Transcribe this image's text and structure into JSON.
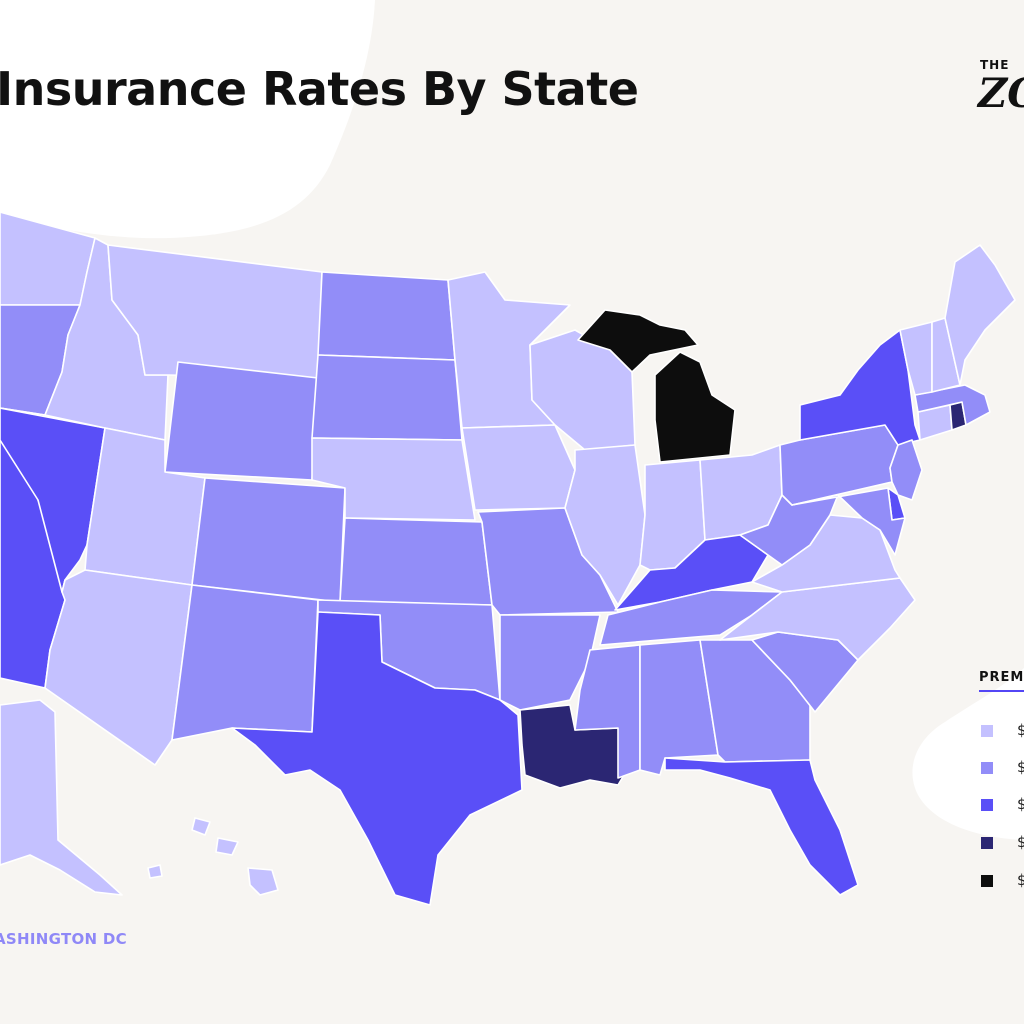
{
  "title": "Insurance Rates By State",
  "brand": {
    "line1": "THE",
    "line2": "ZO"
  },
  "legend": {
    "title": "PREM",
    "items": [
      {
        "label": "$",
        "color": "#c4c1ff"
      },
      {
        "label": "$",
        "color": "#928df8"
      },
      {
        "label": "$",
        "color": "#5a4ff7"
      },
      {
        "label": "$",
        "color": "#2b2673"
      },
      {
        "label": "$",
        "color": "#0d0d0d"
      }
    ]
  },
  "dc_label": "ASHINGTON DC",
  "colors": {
    "background": "#f7f5f2",
    "highlight_blob": "#ffffff",
    "tier_1": "#c4c1ff",
    "tier_2": "#928df8",
    "tier_3": "#5a4ff7",
    "tier_4": "#2b2673",
    "tier_5": "#0d0d0d",
    "accent": "#5346f5"
  },
  "states": [
    {
      "name": "Washington",
      "tier": 1
    },
    {
      "name": "Oregon",
      "tier": 2
    },
    {
      "name": "California",
      "tier": 3
    },
    {
      "name": "Nevada",
      "tier": 3
    },
    {
      "name": "Idaho",
      "tier": 1
    },
    {
      "name": "Montana",
      "tier": 1
    },
    {
      "name": "Wyoming",
      "tier": 2
    },
    {
      "name": "Utah",
      "tier": 1
    },
    {
      "name": "Arizona",
      "tier": 1
    },
    {
      "name": "Colorado",
      "tier": 2
    },
    {
      "name": "New Mexico",
      "tier": 2
    },
    {
      "name": "North Dakota",
      "tier": 2
    },
    {
      "name": "South Dakota",
      "tier": 2
    },
    {
      "name": "Nebraska",
      "tier": 1
    },
    {
      "name": "Kansas",
      "tier": 2
    },
    {
      "name": "Oklahoma",
      "tier": 2
    },
    {
      "name": "Texas",
      "tier": 3
    },
    {
      "name": "Minnesota",
      "tier": 1
    },
    {
      "name": "Iowa",
      "tier": 1
    },
    {
      "name": "Missouri",
      "tier": 2
    },
    {
      "name": "Arkansas",
      "tier": 2
    },
    {
      "name": "Louisiana",
      "tier": 4
    },
    {
      "name": "Wisconsin",
      "tier": 1
    },
    {
      "name": "Illinois",
      "tier": 1
    },
    {
      "name": "Michigan",
      "tier": 5
    },
    {
      "name": "Indiana",
      "tier": 1
    },
    {
      "name": "Ohio",
      "tier": 1
    },
    {
      "name": "Kentucky",
      "tier": 3
    },
    {
      "name": "Tennessee",
      "tier": 2
    },
    {
      "name": "Mississippi",
      "tier": 2
    },
    {
      "name": "Alabama",
      "tier": 2
    },
    {
      "name": "Georgia",
      "tier": 2
    },
    {
      "name": "Florida",
      "tier": 3
    },
    {
      "name": "South Carolina",
      "tier": 2
    },
    {
      "name": "North Carolina",
      "tier": 1
    },
    {
      "name": "Virginia",
      "tier": 1
    },
    {
      "name": "West Virginia",
      "tier": 2
    },
    {
      "name": "Pennsylvania",
      "tier": 2
    },
    {
      "name": "New York",
      "tier": 3
    },
    {
      "name": "New Jersey",
      "tier": 2
    },
    {
      "name": "Delaware",
      "tier": 3
    },
    {
      "name": "Maryland",
      "tier": 2
    },
    {
      "name": "Connecticut",
      "tier": 1
    },
    {
      "name": "Rhode Island",
      "tier": 4
    },
    {
      "name": "Massachusetts",
      "tier": 2
    },
    {
      "name": "Vermont",
      "tier": 1
    },
    {
      "name": "New Hampshire",
      "tier": 1
    },
    {
      "name": "Maine",
      "tier": 1
    },
    {
      "name": "Alaska",
      "tier": 1
    },
    {
      "name": "Hawaii",
      "tier": 1
    }
  ]
}
